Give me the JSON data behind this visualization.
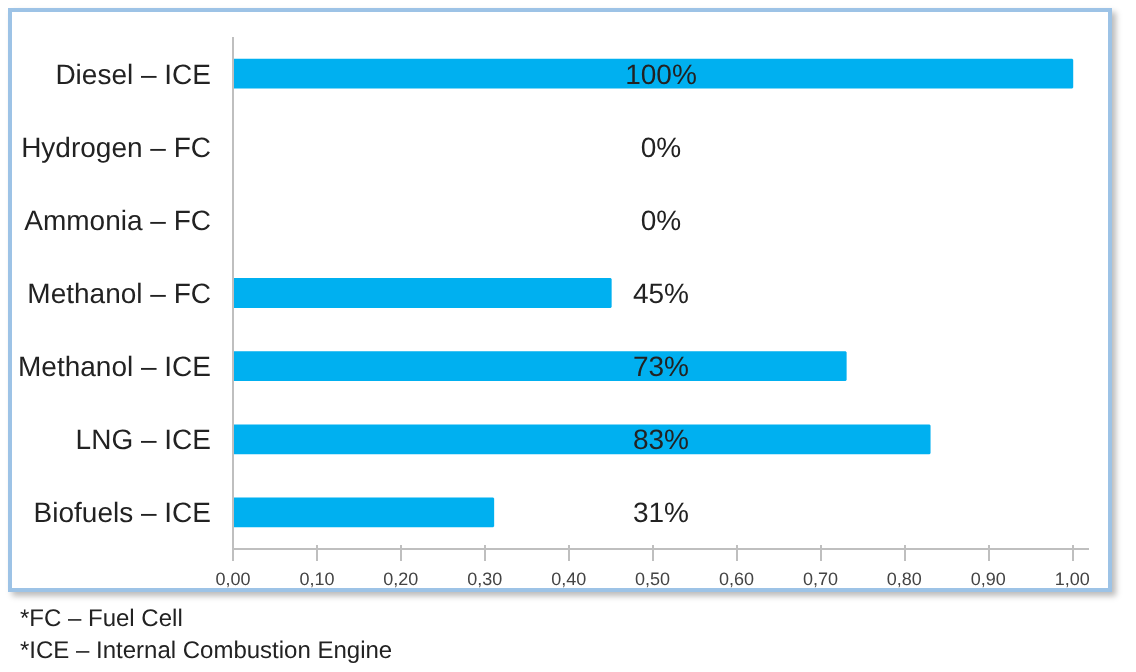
{
  "chart_data": {
    "type": "bar",
    "orientation": "horizontal",
    "categories": [
      "Diesel – ICE",
      "Hydrogen – FC",
      "Ammonia – FC",
      "Methanol – FC",
      "Methanol – ICE",
      "LNG – ICE",
      "Biofuels – ICE"
    ],
    "values": [
      1.0,
      0,
      0,
      0.45,
      0.73,
      0.83,
      0.31
    ],
    "value_labels": [
      "100%",
      "0%",
      "0%",
      "45%",
      "73%",
      "83%",
      "31%"
    ],
    "color": "#00b0f0",
    "xlim": [
      0,
      1.02
    ],
    "xticks": [
      {
        "value": 0,
        "label": "0,00"
      },
      {
        "value": 0.1,
        "label": "0,10"
      },
      {
        "value": 0.2,
        "label": "0,20"
      },
      {
        "value": 0.3,
        "label": "0,30"
      },
      {
        "value": 0.4,
        "label": "0,40"
      },
      {
        "value": 0.5,
        "label": "0,50"
      },
      {
        "value": 0.6,
        "label": "0,60"
      },
      {
        "value": 0.7,
        "label": "0,70"
      },
      {
        "value": 0.8,
        "label": "0,80"
      },
      {
        "value": 0.9,
        "label": "0,90"
      },
      {
        "value": 1.0,
        "label": "1,00"
      }
    ],
    "annotations": [
      "*FC – Fuel Cell",
      "*ICE – Internal Combustion Engine"
    ]
  }
}
